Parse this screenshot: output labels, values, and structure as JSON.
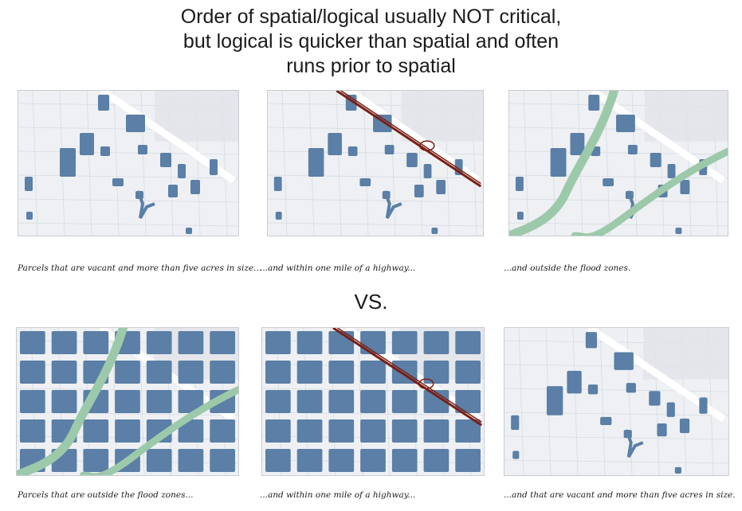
{
  "title": {
    "line1": "Order of spatial/logical usually NOT critical,",
    "line2": "but logical is quicker than spatial and often",
    "line3": "runs prior to spatial"
  },
  "separator": "VS.",
  "colors": {
    "parcel": "#5b7fa6",
    "flood": "#9cc9aa",
    "highway": "#7a1f14",
    "road": "#ffffff",
    "background": "#eef0f3"
  },
  "top_row": [
    {
      "caption": "Parcels that are vacant and more than five acres in size...",
      "layers": [
        "vacant-parcels"
      ]
    },
    {
      "caption": "...and within one mile of a highway...",
      "layers": [
        "vacant-parcels",
        "highway"
      ]
    },
    {
      "caption": "...and outside the flood zones.",
      "layers": [
        "vacant-parcels",
        "flood-zone"
      ]
    }
  ],
  "bottom_row": [
    {
      "caption": "Parcels that are outside the flood zones...",
      "layers": [
        "dense-parcels",
        "flood-zone"
      ]
    },
    {
      "caption": "...and within one mile of a highway...",
      "layers": [
        "dense-parcels",
        "highway"
      ]
    },
    {
      "caption": "...and that are vacant and more than five acres in size.",
      "layers": [
        "vacant-parcels"
      ]
    }
  ]
}
